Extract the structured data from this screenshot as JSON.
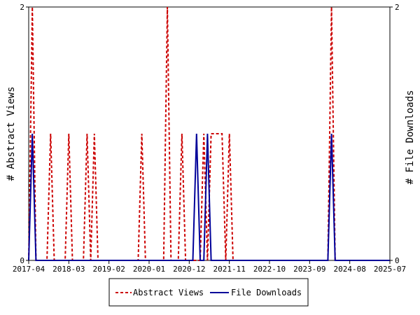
{
  "chart_data": {
    "type": "line",
    "x_ticks": [
      "2017-04",
      "2018-03",
      "2019-02",
      "2020-01",
      "2020-12",
      "2021-11",
      "2022-10",
      "2023-09",
      "2024-08",
      "2025-07"
    ],
    "y_left": {
      "label": "# Abstract Views",
      "ticks": [
        "0",
        "2"
      ],
      "range": [
        0,
        2
      ]
    },
    "y_right": {
      "label": "# File Downloads",
      "ticks": [
        "0",
        "2"
      ],
      "range": [
        0,
        2
      ]
    },
    "x_range": [
      "2017-04",
      "2025-07"
    ],
    "series": [
      {
        "name": "Abstract Views",
        "color": "#cc0000",
        "style": "dashed",
        "points": [
          [
            "2017-04",
            0
          ],
          [
            "2017-05",
            2
          ],
          [
            "2017-06",
            0
          ],
          [
            "2017-07",
            0
          ],
          [
            "2017-08",
            0
          ],
          [
            "2017-09",
            0
          ],
          [
            "2017-10",
            1
          ],
          [
            "2017-11",
            0
          ],
          [
            "2017-12",
            0
          ],
          [
            "2018-01",
            0
          ],
          [
            "2018-02",
            0
          ],
          [
            "2018-03",
            1
          ],
          [
            "2018-04",
            0
          ],
          [
            "2018-05",
            0
          ],
          [
            "2018-06",
            0
          ],
          [
            "2018-07",
            0
          ],
          [
            "2018-08",
            1
          ],
          [
            "2018-09",
            0
          ],
          [
            "2018-10",
            1
          ],
          [
            "2018-11",
            0
          ],
          [
            "2019-10",
            0
          ],
          [
            "2019-11",
            1
          ],
          [
            "2019-12",
            0
          ],
          [
            "2020-05",
            0
          ],
          [
            "2020-06",
            2
          ],
          [
            "2020-07",
            0
          ],
          [
            "2020-09",
            0
          ],
          [
            "2020-10",
            1
          ],
          [
            "2020-11",
            0
          ],
          [
            "2021-03",
            0
          ],
          [
            "2021-04",
            1
          ],
          [
            "2021-05",
            0
          ],
          [
            "2021-06",
            1
          ],
          [
            "2021-07",
            1
          ],
          [
            "2021-08",
            1
          ],
          [
            "2021-09",
            1
          ],
          [
            "2021-10",
            0
          ],
          [
            "2021-11",
            1
          ],
          [
            "2021-12",
            0
          ],
          [
            "2024-02",
            0
          ],
          [
            "2024-03",
            2
          ],
          [
            "2024-04",
            0
          ],
          [
            "2025-07",
            0
          ]
        ]
      },
      {
        "name": "File Downloads",
        "color": "#000099",
        "style": "solid",
        "points": [
          [
            "2017-04",
            0
          ],
          [
            "2017-05",
            1
          ],
          [
            "2017-06",
            0
          ],
          [
            "2017-07",
            0
          ],
          [
            "2021-01",
            0
          ],
          [
            "2021-02",
            1
          ],
          [
            "2021-03",
            0
          ],
          [
            "2021-04",
            0
          ],
          [
            "2021-05",
            1
          ],
          [
            "2021-06",
            0
          ],
          [
            "2024-02",
            0
          ],
          [
            "2024-03",
            1
          ],
          [
            "2024-04",
            0
          ],
          [
            "2025-07",
            0
          ]
        ]
      }
    ],
    "legend": {
      "position": "bottom"
    },
    "grid": false
  }
}
